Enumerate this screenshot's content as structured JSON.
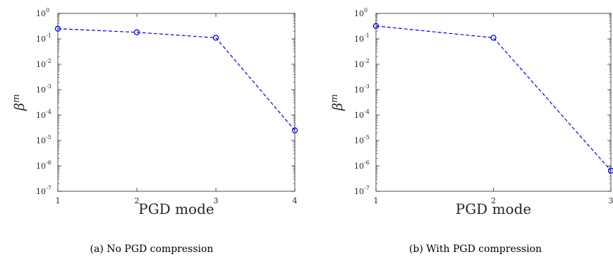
{
  "chart_data": [
    {
      "type": "line",
      "caption": "(a) No PGD compression",
      "xlabel": "PGD mode",
      "ylabel_base": "β",
      "ylabel_sup": "m",
      "yscale": "log",
      "xlim": [
        1,
        4
      ],
      "ylim": [
        1e-07,
        1
      ],
      "xticks": [
        "1",
        "2",
        "3",
        "4"
      ],
      "yticks": [
        {
          "value": 1e-07,
          "base": "10",
          "exp": "-7"
        },
        {
          "value": 1e-06,
          "base": "10",
          "exp": "-6"
        },
        {
          "value": 1e-05,
          "base": "10",
          "exp": "-5"
        },
        {
          "value": 0.0001,
          "base": "10",
          "exp": "-4"
        },
        {
          "value": 0.001,
          "base": "10",
          "exp": "-3"
        },
        {
          "value": 0.01,
          "base": "10",
          "exp": "-2"
        },
        {
          "value": 0.1,
          "base": "10",
          "exp": "-1"
        },
        {
          "value": 1,
          "base": "10",
          "exp": "0"
        }
      ],
      "grid": false,
      "series": [
        {
          "x": [
            1,
            2,
            3,
            4
          ],
          "y": [
            0.25,
            0.18,
            0.11,
            2.5e-05
          ],
          "color": "#0000ee",
          "style": "dashed",
          "marker": "circle"
        }
      ]
    },
    {
      "type": "line",
      "caption": "(b) With PGD compression",
      "xlabel": "PGD mode",
      "ylabel_base": "β",
      "ylabel_sup": "m",
      "yscale": "log",
      "xlim": [
        1,
        3
      ],
      "ylim": [
        1e-07,
        1
      ],
      "xticks": [
        "1",
        "2",
        "3"
      ],
      "yticks": [
        {
          "value": 1e-07,
          "base": "10",
          "exp": "-7"
        },
        {
          "value": 1e-06,
          "base": "10",
          "exp": "-6"
        },
        {
          "value": 1e-05,
          "base": "10",
          "exp": "-5"
        },
        {
          "value": 0.0001,
          "base": "10",
          "exp": "-4"
        },
        {
          "value": 0.001,
          "base": "10",
          "exp": "-3"
        },
        {
          "value": 0.01,
          "base": "10",
          "exp": "-2"
        },
        {
          "value": 0.1,
          "base": "10",
          "exp": "-1"
        },
        {
          "value": 1,
          "base": "10",
          "exp": "0"
        }
      ],
      "grid": false,
      "series": [
        {
          "x": [
            1,
            2,
            3
          ],
          "y": [
            0.32,
            0.11,
            6.5e-07
          ],
          "color": "#0000ee",
          "style": "dashed",
          "marker": "circle"
        }
      ]
    }
  ]
}
